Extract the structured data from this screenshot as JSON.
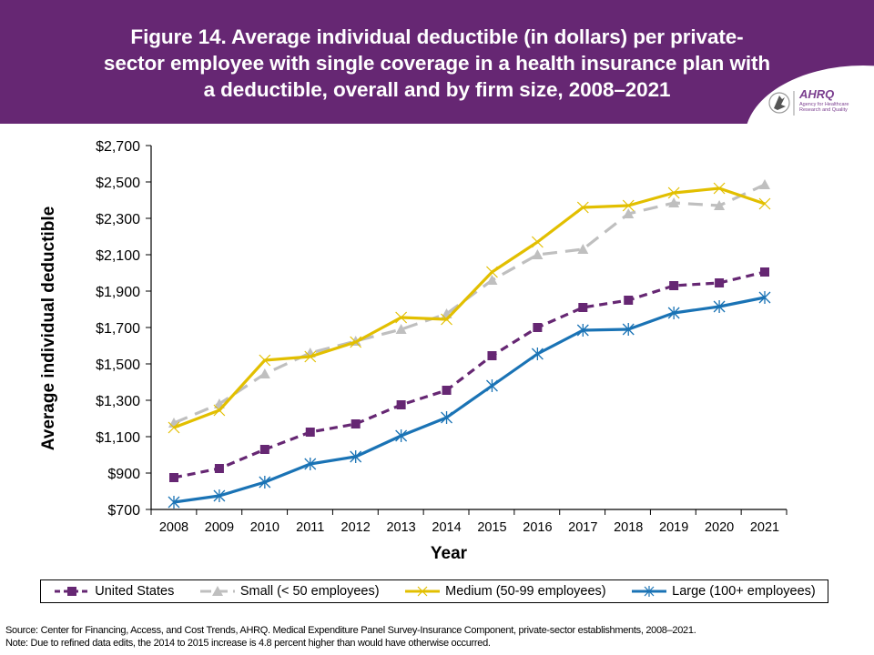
{
  "header": {
    "title_lines": [
      "Figure 14. Average individual deductible (in dollars) per private-",
      "sector employee with single coverage in a health insurance plan with",
      "a deductible, overall and by firm size, 2008–2021"
    ],
    "logo": {
      "icon": "hhs-eagle-icon",
      "name": "AHRQ",
      "subtitle": "Agency for Healthcare Research and Quality"
    }
  },
  "chart_data": {
    "type": "line",
    "title": "Figure 14. Average individual deductible (in dollars) per private-sector employee with single coverage in a health insurance plan with a deductible, overall and by firm size, 2008–2021",
    "xlabel": "Year",
    "ylabel": "Average individual deductible",
    "categories": [
      "2008",
      "2009",
      "2010",
      "2011",
      "2012",
      "2013",
      "2014",
      "2015",
      "2016",
      "2017",
      "2018",
      "2019",
      "2020",
      "2021"
    ],
    "ylim": [
      700,
      2700
    ],
    "yticks": [
      700,
      900,
      1100,
      1300,
      1500,
      1700,
      1900,
      2100,
      2300,
      2500,
      2700
    ],
    "ytick_labels": [
      "$700",
      "$900",
      "$1,100",
      "$1,300",
      "$1,500",
      "$1,700",
      "$1,900",
      "$2,100",
      "$2,300",
      "$2,500",
      "$2,700"
    ],
    "grid": false,
    "legend_position": "bottom",
    "series": [
      {
        "name": "United States",
        "color": "#662773",
        "dash": "dashed",
        "marker": "square",
        "values": [
          875,
          925,
          1030,
          1125,
          1170,
          1275,
          1355,
          1545,
          1700,
          1810,
          1850,
          1930,
          1945,
          2005
        ]
      },
      {
        "name": "Small (< 50 employees)",
        "color": "#bfbfbf",
        "dash": "long-dash",
        "marker": "triangle",
        "values": [
          1175,
          1280,
          1445,
          1560,
          1625,
          1690,
          1775,
          1960,
          2100,
          2130,
          2325,
          2385,
          2370,
          2485
        ]
      },
      {
        "name": "Medium (50-99 employees)",
        "color": "#e2bf00",
        "dash": "solid",
        "marker": "x",
        "values": [
          1150,
          1245,
          1520,
          1540,
          1620,
          1755,
          1745,
          2005,
          2170,
          2360,
          2370,
          2440,
          2465,
          2380
        ]
      },
      {
        "name": "Large (100+ employees)",
        "color": "#1a73b5",
        "dash": "solid",
        "marker": "asterisk",
        "values": [
          740,
          775,
          850,
          950,
          990,
          1105,
          1205,
          1380,
          1555,
          1685,
          1690,
          1780,
          1815,
          1865
        ]
      }
    ]
  },
  "footer": {
    "source": "Source: Center for Financing, Access, and Cost Trends, AHRQ. Medical Expenditure Panel Survey-Insurance Component, private-sector establishments, 2008–2021.",
    "note": "Note: Due to refined data edits, the 2014 to 2015 increase is 4.8 percent higher than would have otherwise occurred."
  }
}
